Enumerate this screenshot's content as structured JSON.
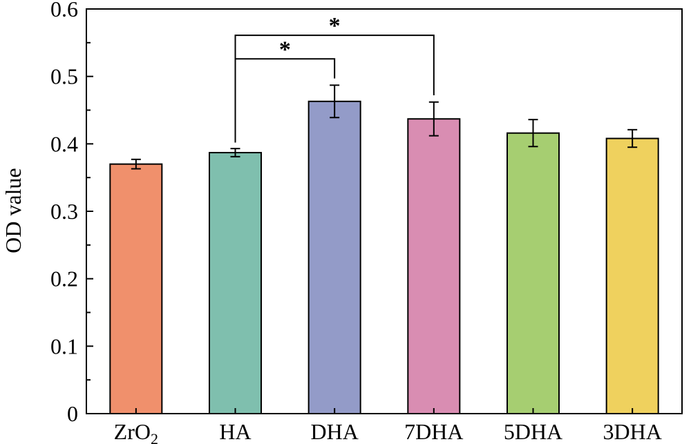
{
  "chart_data": {
    "type": "bar",
    "title": "",
    "xlabel": "",
    "ylabel": "OD value",
    "ylim": [
      0,
      0.6
    ],
    "yticks": [
      "0",
      "0.1",
      "0.2",
      "0.3",
      "0.4",
      "0.5",
      "0.6"
    ],
    "yticks_values": [
      0,
      0.1,
      0.2,
      0.3,
      0.4,
      0.5,
      0.6
    ],
    "grid": false,
    "categories": [
      {
        "base": "ZrO",
        "sub": "2"
      },
      {
        "base": "HA",
        "sub": ""
      },
      {
        "base": "DHA",
        "sub": ""
      },
      {
        "base": "7DHA",
        "sub": ""
      },
      {
        "base": "5DHA",
        "sub": ""
      },
      {
        "base": "3DHA",
        "sub": ""
      }
    ],
    "values": [
      0.37,
      0.387,
      0.463,
      0.437,
      0.416,
      0.408
    ],
    "errors": [
      0.007,
      0.006,
      0.024,
      0.025,
      0.02,
      0.013
    ],
    "colors": [
      "#F0906C",
      "#7FBFAE",
      "#939BC8",
      "#D98DB2",
      "#A6CE71",
      "#EFD15E"
    ],
    "significance": [
      {
        "from": 1,
        "to": 2,
        "label": "*"
      },
      {
        "from": 1,
        "to": 3,
        "label": "*"
      }
    ]
  }
}
